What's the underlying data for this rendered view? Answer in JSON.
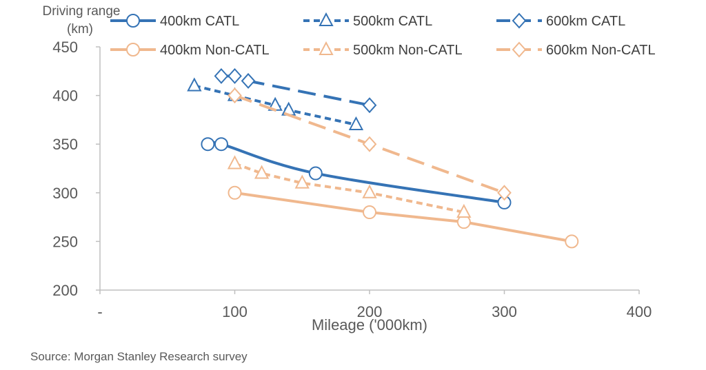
{
  "chart_data": {
    "type": "line",
    "title": "",
    "ylabel_lines": [
      "Driving range",
      "(km)"
    ],
    "xlabel": "Mileage ('000km)",
    "xlim": [
      0,
      400
    ],
    "ylim": [
      200,
      450
    ],
    "xticks": [
      0,
      100,
      200,
      300,
      400
    ],
    "xtick_labels": [
      "-",
      "100",
      "200",
      "300",
      "400"
    ],
    "yticks": [
      200,
      250,
      300,
      350,
      400,
      450
    ],
    "grid": false,
    "legend_position": "top",
    "colors": {
      "catl": "#3573b5",
      "non_catl": "#f0b88e",
      "axis": "#bfbfbf",
      "text": "#595959"
    },
    "series": [
      {
        "name": "400km CATL",
        "color": "catl",
        "dash": "solid",
        "marker": "circle",
        "x": [
          80,
          90,
          160,
          300
        ],
        "y": [
          350,
          350,
          320,
          290
        ],
        "curve": true
      },
      {
        "name": "500km CATL",
        "color": "catl",
        "dash": "short",
        "marker": "triangle",
        "x": [
          70,
          100,
          130,
          140,
          190
        ],
        "y": [
          410,
          400,
          390,
          385,
          370
        ]
      },
      {
        "name": "600km CATL",
        "color": "catl",
        "dash": "long",
        "marker": "diamond",
        "x": [
          90,
          100,
          110,
          200
        ],
        "y": [
          420,
          420,
          415,
          390
        ]
      },
      {
        "name": "400km Non-CATL",
        "color": "non_catl",
        "dash": "solid",
        "marker": "circle",
        "x": [
          100,
          200,
          270,
          350
        ],
        "y": [
          300,
          280,
          270,
          250
        ]
      },
      {
        "name": "500km Non-CATL",
        "color": "non_catl",
        "dash": "short",
        "marker": "triangle",
        "x": [
          100,
          120,
          150,
          200,
          270
        ],
        "y": [
          330,
          320,
          310,
          300,
          280
        ]
      },
      {
        "name": "600km Non-CATL",
        "color": "non_catl",
        "dash": "long",
        "marker": "diamond",
        "x": [
          100,
          200,
          300
        ],
        "y": [
          400,
          350,
          300
        ]
      }
    ]
  },
  "source": "Source: Morgan Stanley Research survey"
}
